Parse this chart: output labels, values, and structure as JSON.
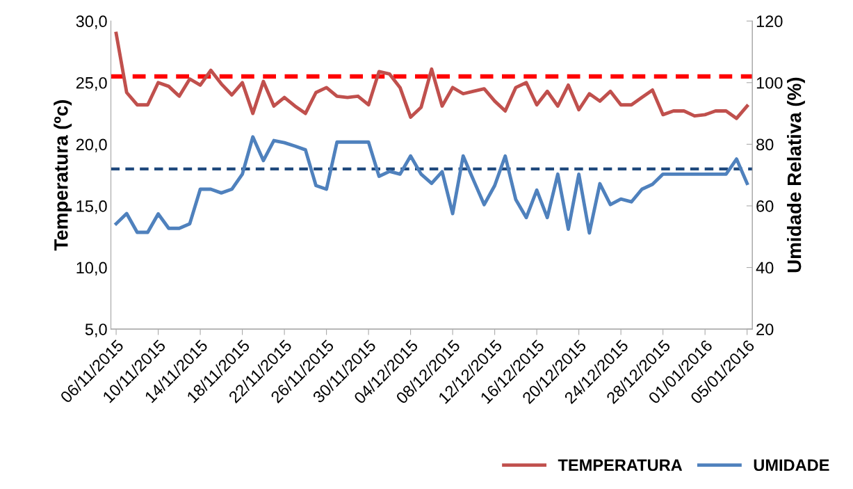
{
  "chart_data": {
    "type": "line",
    "categories": [
      "06/11/2015",
      null,
      null,
      null,
      "10/11/2015",
      null,
      null,
      null,
      "14/11/2015",
      null,
      null,
      null,
      "18/11/2015",
      null,
      null,
      null,
      "22/11/2015",
      null,
      null,
      null,
      "26/11/2015",
      null,
      null,
      null,
      "30/11/2015",
      null,
      null,
      null,
      "04/12/2015",
      null,
      null,
      null,
      "08/12/2015",
      null,
      null,
      null,
      "12/12/2015",
      null,
      null,
      null,
      "16/12/2015",
      null,
      null,
      null,
      "20/12/2015",
      null,
      null,
      null,
      "24/12/2015",
      null,
      null,
      null,
      "28/12/2015",
      null,
      null,
      null,
      "01/01/2016",
      null,
      null,
      null,
      "05/01/2016"
    ],
    "ylabel": "Temperatura (ºc)",
    "y2label": "Umidade Relativa (%)",
    "ylim": [
      5,
      30
    ],
    "yticks": [
      {
        "value": 5,
        "label": "5,0"
      },
      {
        "value": 10,
        "label": "10,0"
      },
      {
        "value": 15,
        "label": "15,0"
      },
      {
        "value": 20,
        "label": "20,0"
      },
      {
        "value": 25,
        "label": "25,0"
      },
      {
        "value": 30,
        "label": "30,0"
      }
    ],
    "y2lim": [
      20,
      120
    ],
    "y2ticks": [
      20,
      40,
      60,
      80,
      100,
      120
    ],
    "grid": false,
    "legend": "bottom right",
    "marker": "none",
    "line_style": "solid",
    "series": [
      {
        "name": "TEMPERATURA",
        "color": "#c0504d",
        "values": [
          29.0,
          24.2,
          23.2,
          23.2,
          25.0,
          24.7,
          23.9,
          25.3,
          24.8,
          26.0,
          24.9,
          24.0,
          25.0,
          22.5,
          25.1,
          23.1,
          23.8,
          23.1,
          22.5,
          24.2,
          24.6,
          23.9,
          23.8,
          23.9,
          23.2,
          25.9,
          25.7,
          24.6,
          22.2,
          23.0,
          26.1,
          23.1,
          24.6,
          24.1,
          24.3,
          24.5,
          23.5,
          22.7,
          24.6,
          25.0,
          23.2,
          24.3,
          23.1,
          24.8,
          22.8,
          24.1,
          23.5,
          24.3,
          23.2,
          23.2,
          23.8,
          24.4,
          22.4,
          22.7,
          22.7,
          22.3,
          22.4,
          22.7,
          22.7,
          22.1,
          23.1
        ]
      },
      {
        "name": "UMIDADE",
        "color": "#4f81bd",
        "axis": "y2",
        "values": [
          54.2,
          57.5,
          51.4,
          51.4,
          57.4,
          52.7,
          52.7,
          54.2,
          65.4,
          65.4,
          64.2,
          65.4,
          70.3,
          82.4,
          74.7,
          81.2,
          80.5,
          79.4,
          78.2,
          66.6,
          65.4,
          80.7,
          80.7,
          80.7,
          80.7,
          69.6,
          71.2,
          70.3,
          76.2,
          70.3,
          67.3,
          71.1,
          57.5,
          76.2,
          68.2,
          60.4,
          66.6,
          76.2,
          62.1,
          56.2,
          65.1,
          56.2,
          70.3,
          52.4,
          70.3,
          51.2,
          67.2,
          60.4,
          62.2,
          61.3,
          65.4,
          67.0,
          70.3,
          70.3,
          70.3,
          70.3,
          70.3,
          70.3,
          70.3,
          75.2,
          67.3
        ]
      }
    ],
    "ref_lines": [
      {
        "axis": "y",
        "value": 25.5,
        "color": "#ff0000",
        "line_style": "dashed"
      },
      {
        "axis": "y2",
        "value": 72,
        "color": "#1f497d",
        "line_style": "dashed"
      }
    ]
  }
}
